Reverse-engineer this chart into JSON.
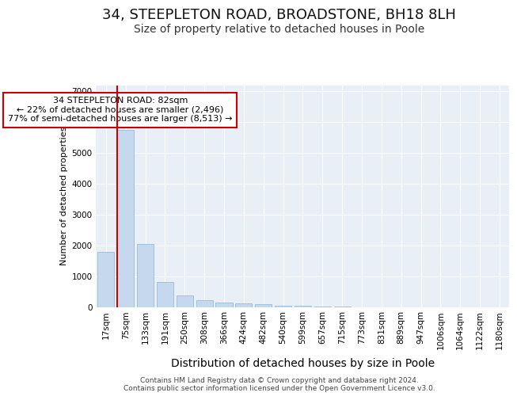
{
  "title1": "34, STEEPLETON ROAD, BROADSTONE, BH18 8LH",
  "title2": "Size of property relative to detached houses in Poole",
  "xlabel": "Distribution of detached houses by size in Poole",
  "ylabel": "Number of detached properties",
  "footer1": "Contains HM Land Registry data © Crown copyright and database right 2024.",
  "footer2": "Contains public sector information licensed under the Open Government Licence v3.0.",
  "annotation_title": "34 STEEPLETON ROAD: 82sqm",
  "annotation_line2": "← 22% of detached houses are smaller (2,496)",
  "annotation_line3": "77% of semi-detached houses are larger (8,513) →",
  "bar_labels": [
    "17sqm",
    "75sqm",
    "133sqm",
    "191sqm",
    "250sqm",
    "308sqm",
    "366sqm",
    "424sqm",
    "482sqm",
    "540sqm",
    "599sqm",
    "657sqm",
    "715sqm",
    "773sqm",
    "831sqm",
    "889sqm",
    "947sqm",
    "1006sqm",
    "1064sqm",
    "1122sqm",
    "1180sqm"
  ],
  "bar_values": [
    1800,
    5750,
    2050,
    820,
    370,
    220,
    130,
    105,
    80,
    50,
    30,
    10,
    5,
    0,
    0,
    0,
    0,
    0,
    0,
    0,
    0
  ],
  "bar_color": "#c5d8ed",
  "bar_edgecolor": "#99bbda",
  "marker_color": "#cc0000",
  "ylim": [
    0,
    7200
  ],
  "yticks": [
    0,
    1000,
    2000,
    3000,
    4000,
    5000,
    6000,
    7000
  ],
  "bg_color": "#ffffff",
  "plot_bg_color": "#e8eff7",
  "grid_color": "#ffffff",
  "annotation_box_facecolor": "#ffffff",
  "annotation_border_color": "#cc0000",
  "title1_fontsize": 13,
  "title2_fontsize": 10,
  "xlabel_fontsize": 10,
  "ylabel_fontsize": 8,
  "tick_fontsize": 7.5,
  "footer_fontsize": 6.5
}
